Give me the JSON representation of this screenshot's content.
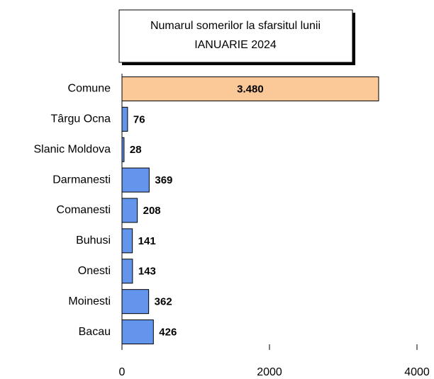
{
  "chart_data": {
    "type": "bar",
    "orientation": "horizontal",
    "title": [
      "Numarul somerilor la sfarsitul lunii",
      "IANUARIE 2024"
    ],
    "categories": [
      "Comune",
      "Târgu Ocna",
      "Slanic Moldova",
      "Darmanesti",
      "Comanesti",
      "Buhusi",
      "Onesti",
      "Moinesti",
      "Bacau"
    ],
    "values": [
      3480,
      76,
      28,
      369,
      208,
      141,
      143,
      362,
      426
    ],
    "value_labels": [
      "3.480",
      "76",
      "28",
      "369",
      "208",
      "141",
      "143",
      "362",
      "426"
    ],
    "colors": [
      "#fbc897",
      "#6495ed",
      "#6495ed",
      "#6495ed",
      "#6495ed",
      "#6495ed",
      "#6495ed",
      "#6495ed",
      "#6495ed"
    ],
    "xlim": [
      0,
      4000
    ],
    "xticks": [
      0,
      2000,
      4000
    ]
  }
}
